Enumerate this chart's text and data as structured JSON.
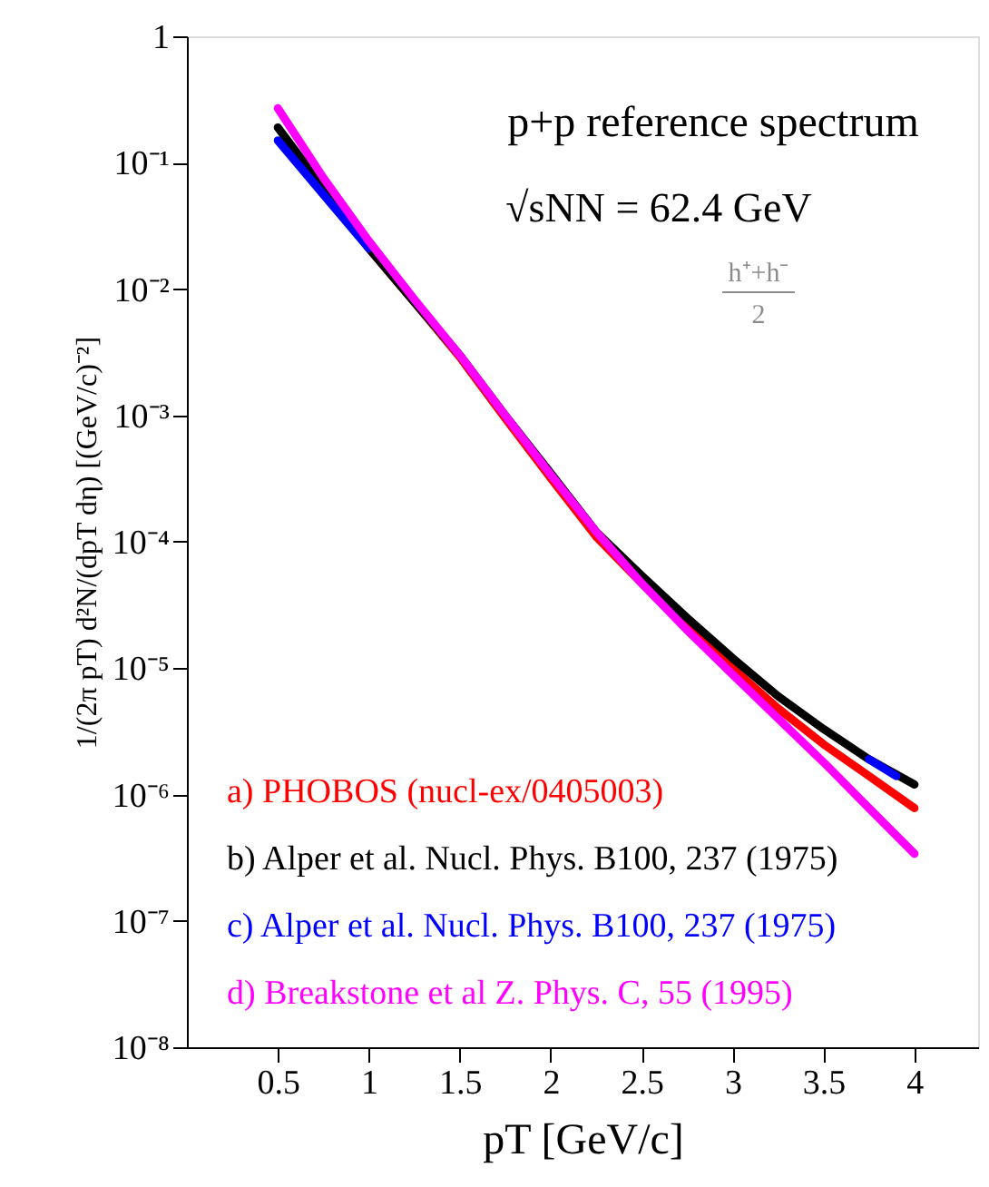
{
  "chart_data": {
    "type": "line",
    "title": "p+p reference spectrum",
    "subtitle": "√sNN = 62.4 GeV",
    "xlabel": "pT [GeV/c]",
    "ylabel": "1/(2π pT) d²N/(dpT dη) [(GeV/c)⁻²]",
    "annotations": [
      "h⁺+h⁻",
      "2"
    ],
    "x": [
      0.5,
      0.75,
      1.0,
      1.25,
      1.5,
      1.75,
      2.0,
      2.25,
      2.5,
      2.75,
      3.0,
      3.25,
      3.5,
      3.75,
      4.0
    ],
    "series": [
      {
        "name": "a) PHOBOS (nucl-ex/0405003)",
        "color": "#ff0000",
        "values": [
          null,
          null,
          0.021,
          0.0079,
          0.0029,
          0.00095,
          0.00032,
          0.00011,
          4.7e-05,
          2.1e-05,
          1e-05,
          4.8e-06,
          2.5e-06,
          1.4e-06,
          7.8e-07
        ]
      },
      {
        "name": "b) Alper et al. Nucl. Phys. B100, 237 (1975)",
        "color": "#000000",
        "values": [
          0.19,
          0.063,
          0.021,
          0.0079,
          0.003,
          0.001,
          0.00035,
          0.00012,
          5.4e-05,
          2.5e-05,
          1.2e-05,
          6e-06,
          3.3e-06,
          1.9e-06,
          1.2e-06
        ]
      },
      {
        "name": "c) Alper et al. Nucl. Phys. B100, 237 (1975)",
        "color": "#0000ff",
        "x": [
          0.5,
          0.75,
          1.0,
          1.25,
          1.5,
          1.75,
          2.0,
          2.25,
          2.5,
          2.75,
          3.0,
          3.25,
          3.5,
          3.75,
          3.9
        ],
        "values": [
          0.15,
          0.056,
          0.021,
          null,
          null,
          null,
          null,
          null,
          null,
          null,
          null,
          null,
          null,
          1.9e-06,
          1.4e-06
        ]
      },
      {
        "name": "d) Breakstone et al Z. Phys. C, 55 (1995)",
        "color": "#ff00ff",
        "values": [
          0.27,
          0.076,
          0.024,
          0.0083,
          0.003,
          0.001,
          0.00034,
          0.00012,
          4.7e-05,
          2e-05,
          8.9e-06,
          4e-06,
          1.8e-06,
          7.8e-07,
          3.4e-07
        ]
      }
    ],
    "xlim": [
      0,
      4.35
    ],
    "xticks": [
      0.5,
      1,
      1.5,
      2,
      2.5,
      3,
      3.5,
      4
    ],
    "ylim": [
      1e-08,
      1
    ],
    "yticks": [
      {
        "value": 1e-08,
        "label": "10⁻⁸"
      },
      {
        "value": 1e-07,
        "label": "10⁻⁷"
      },
      {
        "value": 1e-06,
        "label": "10⁻⁶"
      },
      {
        "value": 1e-05,
        "label": "10⁻⁵"
      },
      {
        "value": 0.0001,
        "label": "10⁻⁴"
      },
      {
        "value": 0.001,
        "label": "10⁻³"
      },
      {
        "value": 0.01,
        "label": "10⁻²"
      },
      {
        "value": 0.1,
        "label": "10⁻¹"
      },
      1
    ],
    "log": "y",
    "grid": false,
    "legend": "bottom left",
    "marker": "none",
    "line_style": "solid"
  }
}
